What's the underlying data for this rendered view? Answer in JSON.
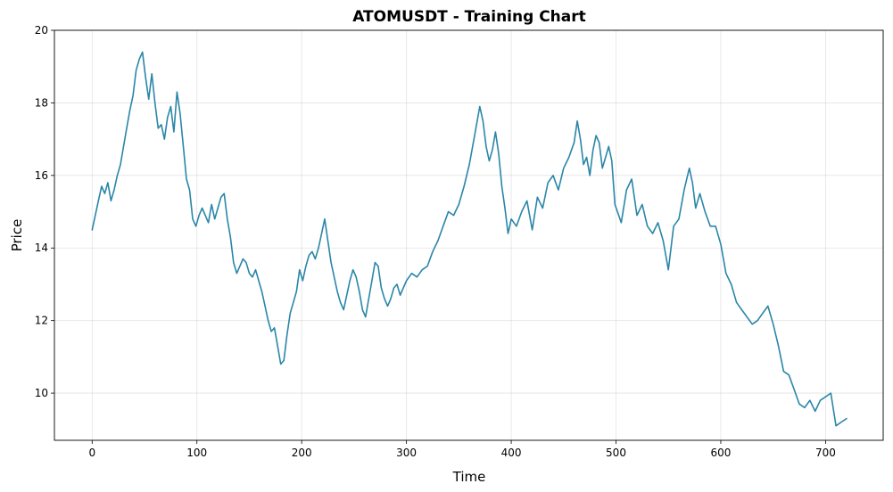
{
  "chart_data": {
    "type": "line",
    "title": "ATOMUSDT - Training Chart",
    "xlabel": "Time",
    "ylabel": "Price",
    "xlim": [
      -36,
      755
    ],
    "ylim": [
      8.7,
      20
    ],
    "x_ticks": [
      0,
      100,
      200,
      300,
      400,
      500,
      600,
      700
    ],
    "y_ticks": [
      10,
      12,
      14,
      16,
      18,
      20
    ],
    "grid": true,
    "line_color": "#2a86a8",
    "series": [
      {
        "x": [
          0,
          3,
          6,
          9,
          12,
          15,
          18,
          21,
          24,
          27,
          30,
          33,
          36,
          39,
          42,
          45,
          48,
          51,
          54,
          57,
          60,
          63,
          66,
          69,
          72,
          75,
          78,
          81,
          84,
          87,
          90,
          93,
          96,
          99,
          102,
          105,
          108,
          111,
          114,
          117,
          120,
          123,
          126,
          129,
          132,
          135,
          138,
          141,
          144,
          147,
          150,
          153,
          156,
          159,
          162,
          165,
          168,
          171,
          174,
          177,
          180,
          183,
          186,
          189,
          192,
          195,
          198,
          201,
          204,
          207,
          210,
          213,
          216,
          219,
          222,
          225,
          228,
          231,
          234,
          237,
          240,
          243,
          246,
          249,
          252,
          255,
          258,
          261,
          264,
          267,
          270,
          273,
          276,
          279,
          282,
          285,
          288,
          291,
          294,
          297,
          300,
          305,
          310,
          315,
          320,
          325,
          330,
          335,
          340,
          345,
          350,
          355,
          360,
          365,
          370,
          373,
          376,
          379,
          382,
          385,
          388,
          391,
          394,
          397,
          400,
          405,
          410,
          415,
          420,
          425,
          430,
          435,
          440,
          445,
          450,
          455,
          460,
          463,
          466,
          469,
          472,
          475,
          478,
          481,
          484,
          487,
          490,
          493,
          496,
          499,
          505,
          510,
          515,
          520,
          525,
          530,
          535,
          540,
          545,
          550,
          555,
          560,
          565,
          570,
          573,
          576,
          580,
          585,
          590,
          595,
          600,
          605,
          610,
          615,
          620,
          625,
          630,
          635,
          640,
          645,
          650,
          655,
          660,
          665,
          670,
          675,
          680,
          685,
          690,
          695,
          700,
          705,
          710,
          715,
          720
        ],
        "values": [
          14.5,
          14.9,
          15.3,
          15.7,
          15.5,
          15.8,
          15.3,
          15.6,
          16.0,
          16.3,
          16.8,
          17.3,
          17.8,
          18.2,
          18.9,
          19.2,
          19.4,
          18.7,
          18.1,
          18.8,
          18.0,
          17.3,
          17.4,
          17.0,
          17.6,
          17.9,
          17.2,
          18.3,
          17.7,
          16.8,
          15.9,
          15.6,
          14.8,
          14.6,
          14.9,
          15.1,
          14.9,
          14.7,
          15.2,
          14.8,
          15.1,
          15.4,
          15.5,
          14.8,
          14.3,
          13.6,
          13.3,
          13.5,
          13.7,
          13.6,
          13.3,
          13.2,
          13.4,
          13.1,
          12.8,
          12.4,
          12.0,
          11.7,
          11.8,
          11.3,
          10.8,
          10.9,
          11.6,
          12.2,
          12.5,
          12.8,
          13.4,
          13.1,
          13.5,
          13.8,
          13.9,
          13.7,
          14.0,
          14.4,
          14.8,
          14.2,
          13.6,
          13.2,
          12.8,
          12.5,
          12.3,
          12.7,
          13.1,
          13.4,
          13.2,
          12.8,
          12.3,
          12.1,
          12.6,
          13.1,
          13.6,
          13.5,
          12.9,
          12.6,
          12.4,
          12.6,
          12.9,
          13.0,
          12.7,
          12.9,
          13.1,
          13.3,
          13.2,
          13.4,
          13.5,
          13.9,
          14.2,
          14.6,
          15.0,
          14.9,
          15.2,
          15.7,
          16.3,
          17.1,
          17.9,
          17.5,
          16.8,
          16.4,
          16.7,
          17.2,
          16.6,
          15.7,
          15.1,
          14.4,
          14.8,
          14.6,
          15.0,
          15.3,
          14.5,
          15.4,
          15.1,
          15.8,
          16.0,
          15.6,
          16.2,
          16.5,
          16.9,
          17.5,
          17.0,
          16.3,
          16.5,
          16.0,
          16.7,
          17.1,
          16.9,
          16.2,
          16.5,
          16.8,
          16.4,
          15.2,
          14.7,
          15.6,
          15.9,
          14.9,
          15.2,
          14.6,
          14.4,
          14.7,
          14.2,
          13.4,
          14.6,
          14.8,
          15.6,
          16.2,
          15.8,
          15.1,
          15.5,
          15.0,
          14.6,
          14.6,
          14.1,
          13.3,
          13.0,
          12.5,
          12.3,
          12.1,
          11.9,
          12.0,
          12.2,
          12.4,
          11.9,
          11.3,
          10.6,
          10.5,
          10.1,
          9.7,
          9.6,
          9.8,
          9.5,
          9.8,
          9.9,
          10.0,
          9.1,
          9.2,
          9.3
        ]
      }
    ]
  }
}
